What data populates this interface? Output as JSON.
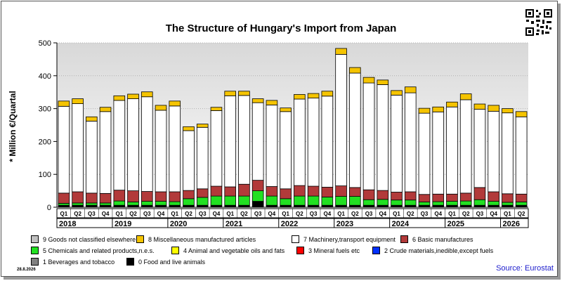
{
  "chart_data": {
    "type": "bar",
    "stacked": true,
    "title": "The Structure of Hungary's Import from Japan",
    "ylabel": "* Million €/Quartal",
    "ylim": [
      0,
      500
    ],
    "yticks": [
      0,
      100,
      200,
      300,
      400,
      500
    ],
    "grid": true,
    "legend_position": "bottom",
    "categories": [
      "Q1",
      "Q2",
      "Q3",
      "Q4",
      "Q1",
      "Q2",
      "Q3",
      "Q4",
      "Q1",
      "Q2",
      "Q3",
      "Q4",
      "Q1",
      "Q2",
      "Q3",
      "Q4",
      "Q1",
      "Q2",
      "Q3",
      "Q4",
      "Q1",
      "Q2",
      "Q3",
      "Q4",
      "Q1",
      "Q2",
      "Q3",
      "Q4",
      "Q1",
      "Q2",
      "Q3",
      "Q4",
      "Q1",
      "Q2"
    ],
    "years": [
      "2018",
      "2019",
      "2020",
      "2021",
      "2022",
      "2023",
      "2024",
      "2025",
      "2026"
    ],
    "series": [
      {
        "name": "9 Goods not classified elsewhere",
        "color": "#c0c0c0",
        "values": [
          0,
          0,
          0,
          0,
          0,
          0,
          0,
          0,
          0,
          0,
          0,
          0,
          0,
          0,
          0,
          0,
          0,
          0,
          0,
          0,
          0,
          0,
          0,
          0,
          0,
          0,
          0,
          0,
          0,
          0,
          0,
          0,
          0,
          0
        ]
      },
      {
        "name": "8 Miscellaneous manufactured articles",
        "color": "#f5c400",
        "values": [
          16,
          15,
          13,
          13,
          14,
          14,
          15,
          15,
          15,
          12,
          10,
          10,
          14,
          13,
          12,
          14,
          11,
          14,
          14,
          15,
          18,
          17,
          17,
          14,
          14,
          18,
          15,
          15,
          15,
          18,
          16,
          18,
          13,
          16
        ]
      },
      {
        "name": "7 Machinery,transport equipment",
        "color": "#ffffff",
        "values": [
          264,
          268,
          219,
          249,
          273,
          280,
          288,
          248,
          261,
          182,
          187,
          230,
          277,
          270,
          236,
          248,
          235,
          263,
          268,
          277,
          400,
          348,
          325,
          322,
          295,
          301,
          247,
          250,
          265,
          284,
          238,
          245,
          246,
          235
        ]
      },
      {
        "name": "6 Basic manufactures",
        "color": "#b23a3a",
        "values": [
          31,
          34,
          30,
          29,
          33,
          34,
          30,
          29,
          30,
          25,
          26,
          30,
          28,
          36,
          32,
          29,
          30,
          32,
          30,
          30,
          32,
          27,
          30,
          27,
          24,
          25,
          23,
          23,
          22,
          24,
          37,
          29,
          26,
          24
        ]
      },
      {
        "name": "5 Chemicals and related products,n.e.s.",
        "color": "#22e022",
        "values": [
          6,
          7,
          7,
          7,
          13,
          10,
          12,
          12,
          11,
          20,
          24,
          28,
          28,
          28,
          32,
          28,
          20,
          28,
          28,
          25,
          27,
          27,
          17,
          18,
          16,
          16,
          10,
          11,
          12,
          13,
          17,
          12,
          9,
          10
        ]
      },
      {
        "name": "4 Animal and vegetable oils and fats",
        "color": "#ffff00",
        "values": [
          0,
          0,
          0,
          0,
          0,
          0,
          0,
          0,
          0,
          0,
          0,
          0,
          0,
          0,
          0,
          0,
          0,
          0,
          0,
          0,
          0,
          0,
          0,
          0,
          0,
          0,
          0,
          0,
          0,
          0,
          0,
          0,
          0,
          0
        ]
      },
      {
        "name": "3 Mineral fuels etc",
        "color": "#ff0000",
        "values": [
          0,
          0,
          0,
          0,
          0,
          0,
          0,
          0,
          0,
          0,
          0,
          0,
          0,
          0,
          0,
          0,
          0,
          0,
          0,
          0,
          0,
          0,
          0,
          0,
          0,
          0,
          0,
          0,
          0,
          0,
          0,
          0,
          0,
          0
        ]
      },
      {
        "name": "2 Crude materials,inedible,except fuels",
        "color": "#0030ff",
        "values": [
          0,
          0,
          0,
          0,
          0,
          0,
          0,
          0,
          0,
          0,
          0,
          0,
          0,
          0,
          0,
          0,
          0,
          0,
          0,
          0,
          0,
          0,
          0,
          0,
          0,
          0,
          0,
          0,
          0,
          0,
          0,
          0,
          0,
          0
        ]
      },
      {
        "name": "1 Beverages and tobacco",
        "color": "#808080",
        "values": [
          0,
          0,
          0,
          0,
          0,
          0,
          0,
          0,
          0,
          0,
          0,
          0,
          0,
          0,
          0,
          0,
          0,
          0,
          0,
          0,
          0,
          0,
          0,
          0,
          0,
          0,
          0,
          0,
          0,
          0,
          0,
          0,
          0,
          0
        ]
      },
      {
        "name": "0 Food and live animals",
        "color": "#000000",
        "values": [
          6,
          6,
          6,
          6,
          6,
          6,
          6,
          6,
          6,
          6,
          6,
          6,
          6,
          6,
          18,
          6,
          6,
          6,
          6,
          6,
          6,
          6,
          6,
          6,
          6,
          6,
          6,
          6,
          6,
          6,
          6,
          6,
          6,
          6
        ]
      }
    ]
  },
  "footer": {
    "date": "28.8.2026",
    "source": "Source: Eurostat"
  }
}
